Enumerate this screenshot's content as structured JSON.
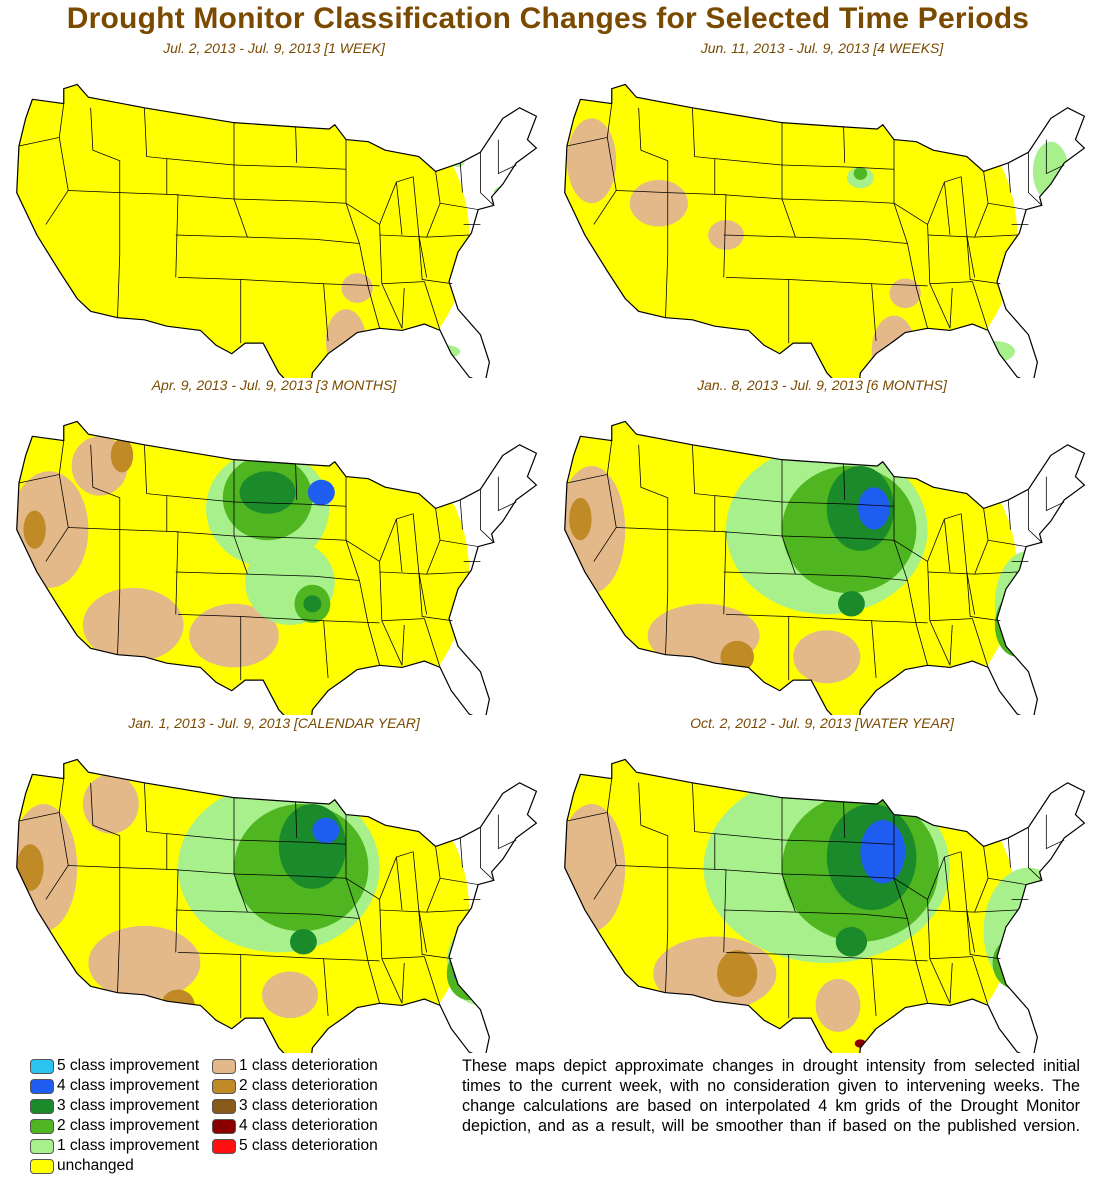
{
  "title": "Drought Monitor Classification Changes for Selected Time Periods",
  "panels": [
    {
      "label": "Jul. 2, 2013 - Jul. 9, 2013 [1 WEEK]",
      "pattern": "week1"
    },
    {
      "label": "Jun. 11, 2013 - Jul. 9, 2013 [4 WEEKS]",
      "pattern": "week4"
    },
    {
      "label": "Apr. 9, 2013 - Jul. 9, 2013 [3 MONTHS]",
      "pattern": "month3"
    },
    {
      "label": "Jan.. 8, 2013 - Jul. 9, 2013 [6 MONTHS]",
      "pattern": "month6"
    },
    {
      "label": "Jan. 1, 2013 - Jul. 9, 2013 [CALENDAR YEAR]",
      "pattern": "calendar"
    },
    {
      "label": "Oct. 2, 2012 - Jul. 9, 2013 [WATER YEAR]",
      "pattern": "water"
    }
  ],
  "legend": {
    "improvement": [
      {
        "label": "5 class improvement",
        "color": "#29c4f0"
      },
      {
        "label": "4 class improvement",
        "color": "#1f5cf0"
      },
      {
        "label": "3 class improvement",
        "color": "#1a8a2a"
      },
      {
        "label": "2 class improvement",
        "color": "#4fb520"
      },
      {
        "label": "1 class improvement",
        "color": "#a8f08c"
      },
      {
        "label": "unchanged",
        "color": "#ffff00"
      }
    ],
    "deterioration": [
      {
        "label": "1 class deterioration",
        "color": "#e4b98a"
      },
      {
        "label": "2 class deterioration",
        "color": "#c08a26"
      },
      {
        "label": "3 class deterioration",
        "color": "#8a5a1a"
      },
      {
        "label": "4 class deterioration",
        "color": "#8a0000"
      },
      {
        "label": "5 class deterioration",
        "color": "#ff1010"
      }
    ]
  },
  "description": "These maps depict approximate changes in drought intensity from selected initial times to the current week, with no consideration given to intervening weeks. The change calculations are based on interpolated 4 km grids of the Drought Monitor depiction, and as a result, will be smoother than if based on the published version."
}
